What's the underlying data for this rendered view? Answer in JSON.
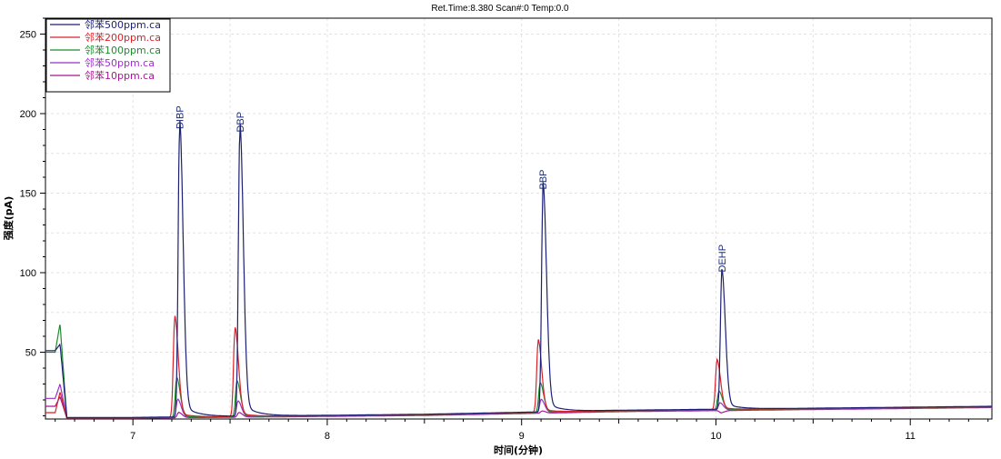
{
  "header": {
    "title": "Ret.Time:8.380 Scan#:0 Temp:0.0"
  },
  "chart_data": {
    "type": "line",
    "xlabel": "时间(分钟)",
    "ylabel": "强度(pA)",
    "xlim": [
      6.55,
      11.42
    ],
    "ylim": [
      8,
      260
    ],
    "xticks": [
      7,
      8,
      9,
      10,
      11
    ],
    "yticks": [
      50,
      100,
      150,
      200,
      250
    ],
    "grid": true,
    "legend_position": "top-left",
    "peaks": [
      {
        "label": "DIBP",
        "rt": 7.24,
        "apex": 188
      },
      {
        "label": "DBP",
        "rt": 7.55,
        "apex": 186
      },
      {
        "label": "BBP",
        "rt": 9.11,
        "apex": 150
      },
      {
        "label": "DEHP",
        "rt": 10.03,
        "apex": 98
      }
    ],
    "series": [
      {
        "name": "邻苯500ppm.ca",
        "color": "#1c1f73",
        "init_y": 51,
        "early_peak": 55,
        "baseline": [
          [
            7.0,
            9.0
          ],
          [
            8.5,
            11.0
          ],
          [
            9.5,
            13.5
          ],
          [
            11.42,
            16.0
          ]
        ],
        "apexes": [
          188,
          186,
          150,
          98
        ],
        "shift": 0.0
      },
      {
        "name": "邻苯200ppm.ca",
        "color": "#d6232a",
        "init_y": 12,
        "early_peak": 25,
        "baseline": [
          [
            7.0,
            8.8
          ],
          [
            8.5,
            10.8
          ],
          [
            9.5,
            13.2
          ],
          [
            11.42,
            15.8
          ]
        ],
        "apexes": [
          70,
          63,
          56,
          44
        ],
        "shift": -0.025
      },
      {
        "name": "邻苯100ppm.ca",
        "color": "#1f8a2e",
        "init_y": 50,
        "early_peak": 68,
        "baseline": [
          [
            7.0,
            8.7
          ],
          [
            8.5,
            10.6
          ],
          [
            9.5,
            13.0
          ],
          [
            11.42,
            15.6
          ]
        ],
        "apexes": [
          33,
          31,
          30,
          25
        ],
        "shift": -0.015
      },
      {
        "name": "邻苯50ppm.ca",
        "color": "#9b30c8",
        "init_y": 21,
        "early_peak": 30,
        "baseline": [
          [
            7.0,
            8.6
          ],
          [
            8.5,
            10.4
          ],
          [
            9.5,
            12.8
          ],
          [
            11.42,
            15.4
          ]
        ],
        "apexes": [
          20,
          19,
          20,
          18
        ],
        "shift": -0.01
      },
      {
        "name": "邻苯10ppm.ca",
        "color": "#a2188f",
        "init_y": 16,
        "early_peak": 22,
        "baseline": [
          [
            7.0,
            8.5
          ],
          [
            8.5,
            10.2
          ],
          [
            9.5,
            12.6
          ],
          [
            11.42,
            15.2
          ]
        ],
        "apexes": [
          12,
          12,
          13,
          12
        ],
        "shift": -0.005
      }
    ]
  }
}
